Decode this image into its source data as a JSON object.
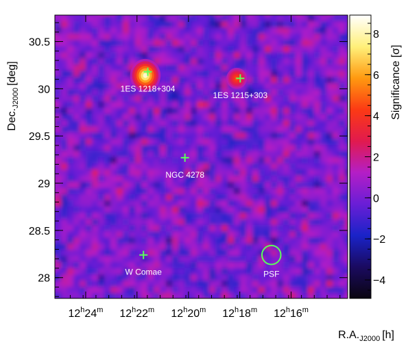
{
  "chart_data": {
    "type": "heatmap",
    "title": "",
    "xlabel": {
      "main": "R.A.",
      "sub": "J2000",
      "unit": "[h]"
    },
    "ylabel": {
      "main": "Dec.",
      "sub": "J2000",
      "unit": "[deg]"
    },
    "colorbar_label": "Significance [σ]",
    "xlim": [
      12.42,
      12.23
    ],
    "ylim": [
      27.78,
      30.78
    ],
    "x_ticks": [
      {
        "value": 12.4,
        "h": "12",
        "m": "24"
      },
      {
        "value": 12.3667,
        "h": "12",
        "m": "22"
      },
      {
        "value": 12.3333,
        "h": "12",
        "m": "20"
      },
      {
        "value": 12.3,
        "h": "12",
        "m": "18"
      },
      {
        "value": 12.2667,
        "h": "12",
        "m": "16"
      }
    ],
    "y_ticks": [
      {
        "value": 28,
        "label": "28"
      },
      {
        "value": 28.5,
        "label": "28.5"
      },
      {
        "value": 29,
        "label": "29"
      },
      {
        "value": 29.5,
        "label": "29.5"
      },
      {
        "value": 30,
        "label": "30"
      },
      {
        "value": 30.5,
        "label": "30.5"
      }
    ],
    "colorbar": {
      "range": [
        -4.9,
        8.9
      ],
      "ticks": [
        {
          "value": -4,
          "label": "−4"
        },
        {
          "value": -2,
          "label": "−2"
        },
        {
          "value": 0,
          "label": "0"
        },
        {
          "value": 2,
          "label": "2"
        },
        {
          "value": 4,
          "label": "4"
        },
        {
          "value": 6,
          "label": "6"
        },
        {
          "value": 8,
          "label": "8"
        }
      ]
    },
    "colormap": [
      "#0a0510",
      "#1a0a60",
      "#1a23c8",
      "#6a1ed6",
      "#b41ec6",
      "#e11a4e",
      "#fc3a14",
      "#ff9a10",
      "#fff07a",
      "#ffffff"
    ],
    "hotspots": [
      {
        "ra": 12.3613,
        "dec": 30.14,
        "peak": 8.5,
        "width_ra": 0.0062,
        "width_dec": 0.11
      },
      {
        "ra": 12.302,
        "dec": 30.11,
        "peak": 4.8,
        "width_ra": 0.0042,
        "width_dec": 0.07
      }
    ],
    "sources": [
      {
        "name": "1ES 1218+304",
        "ra": 12.3597,
        "dec": 30.18
      },
      {
        "name": "1ES 1215+303",
        "ra": 12.2997,
        "dec": 30.11
      },
      {
        "name": "NGC 4278",
        "ra": 12.3356,
        "dec": 29.27
      },
      {
        "name": "W Comae",
        "ra": 12.3625,
        "dec": 28.24
      }
    ],
    "psf": {
      "label": "PSF",
      "ra": 12.2795,
      "dec": 28.24,
      "radius_deg": 0.1
    }
  }
}
